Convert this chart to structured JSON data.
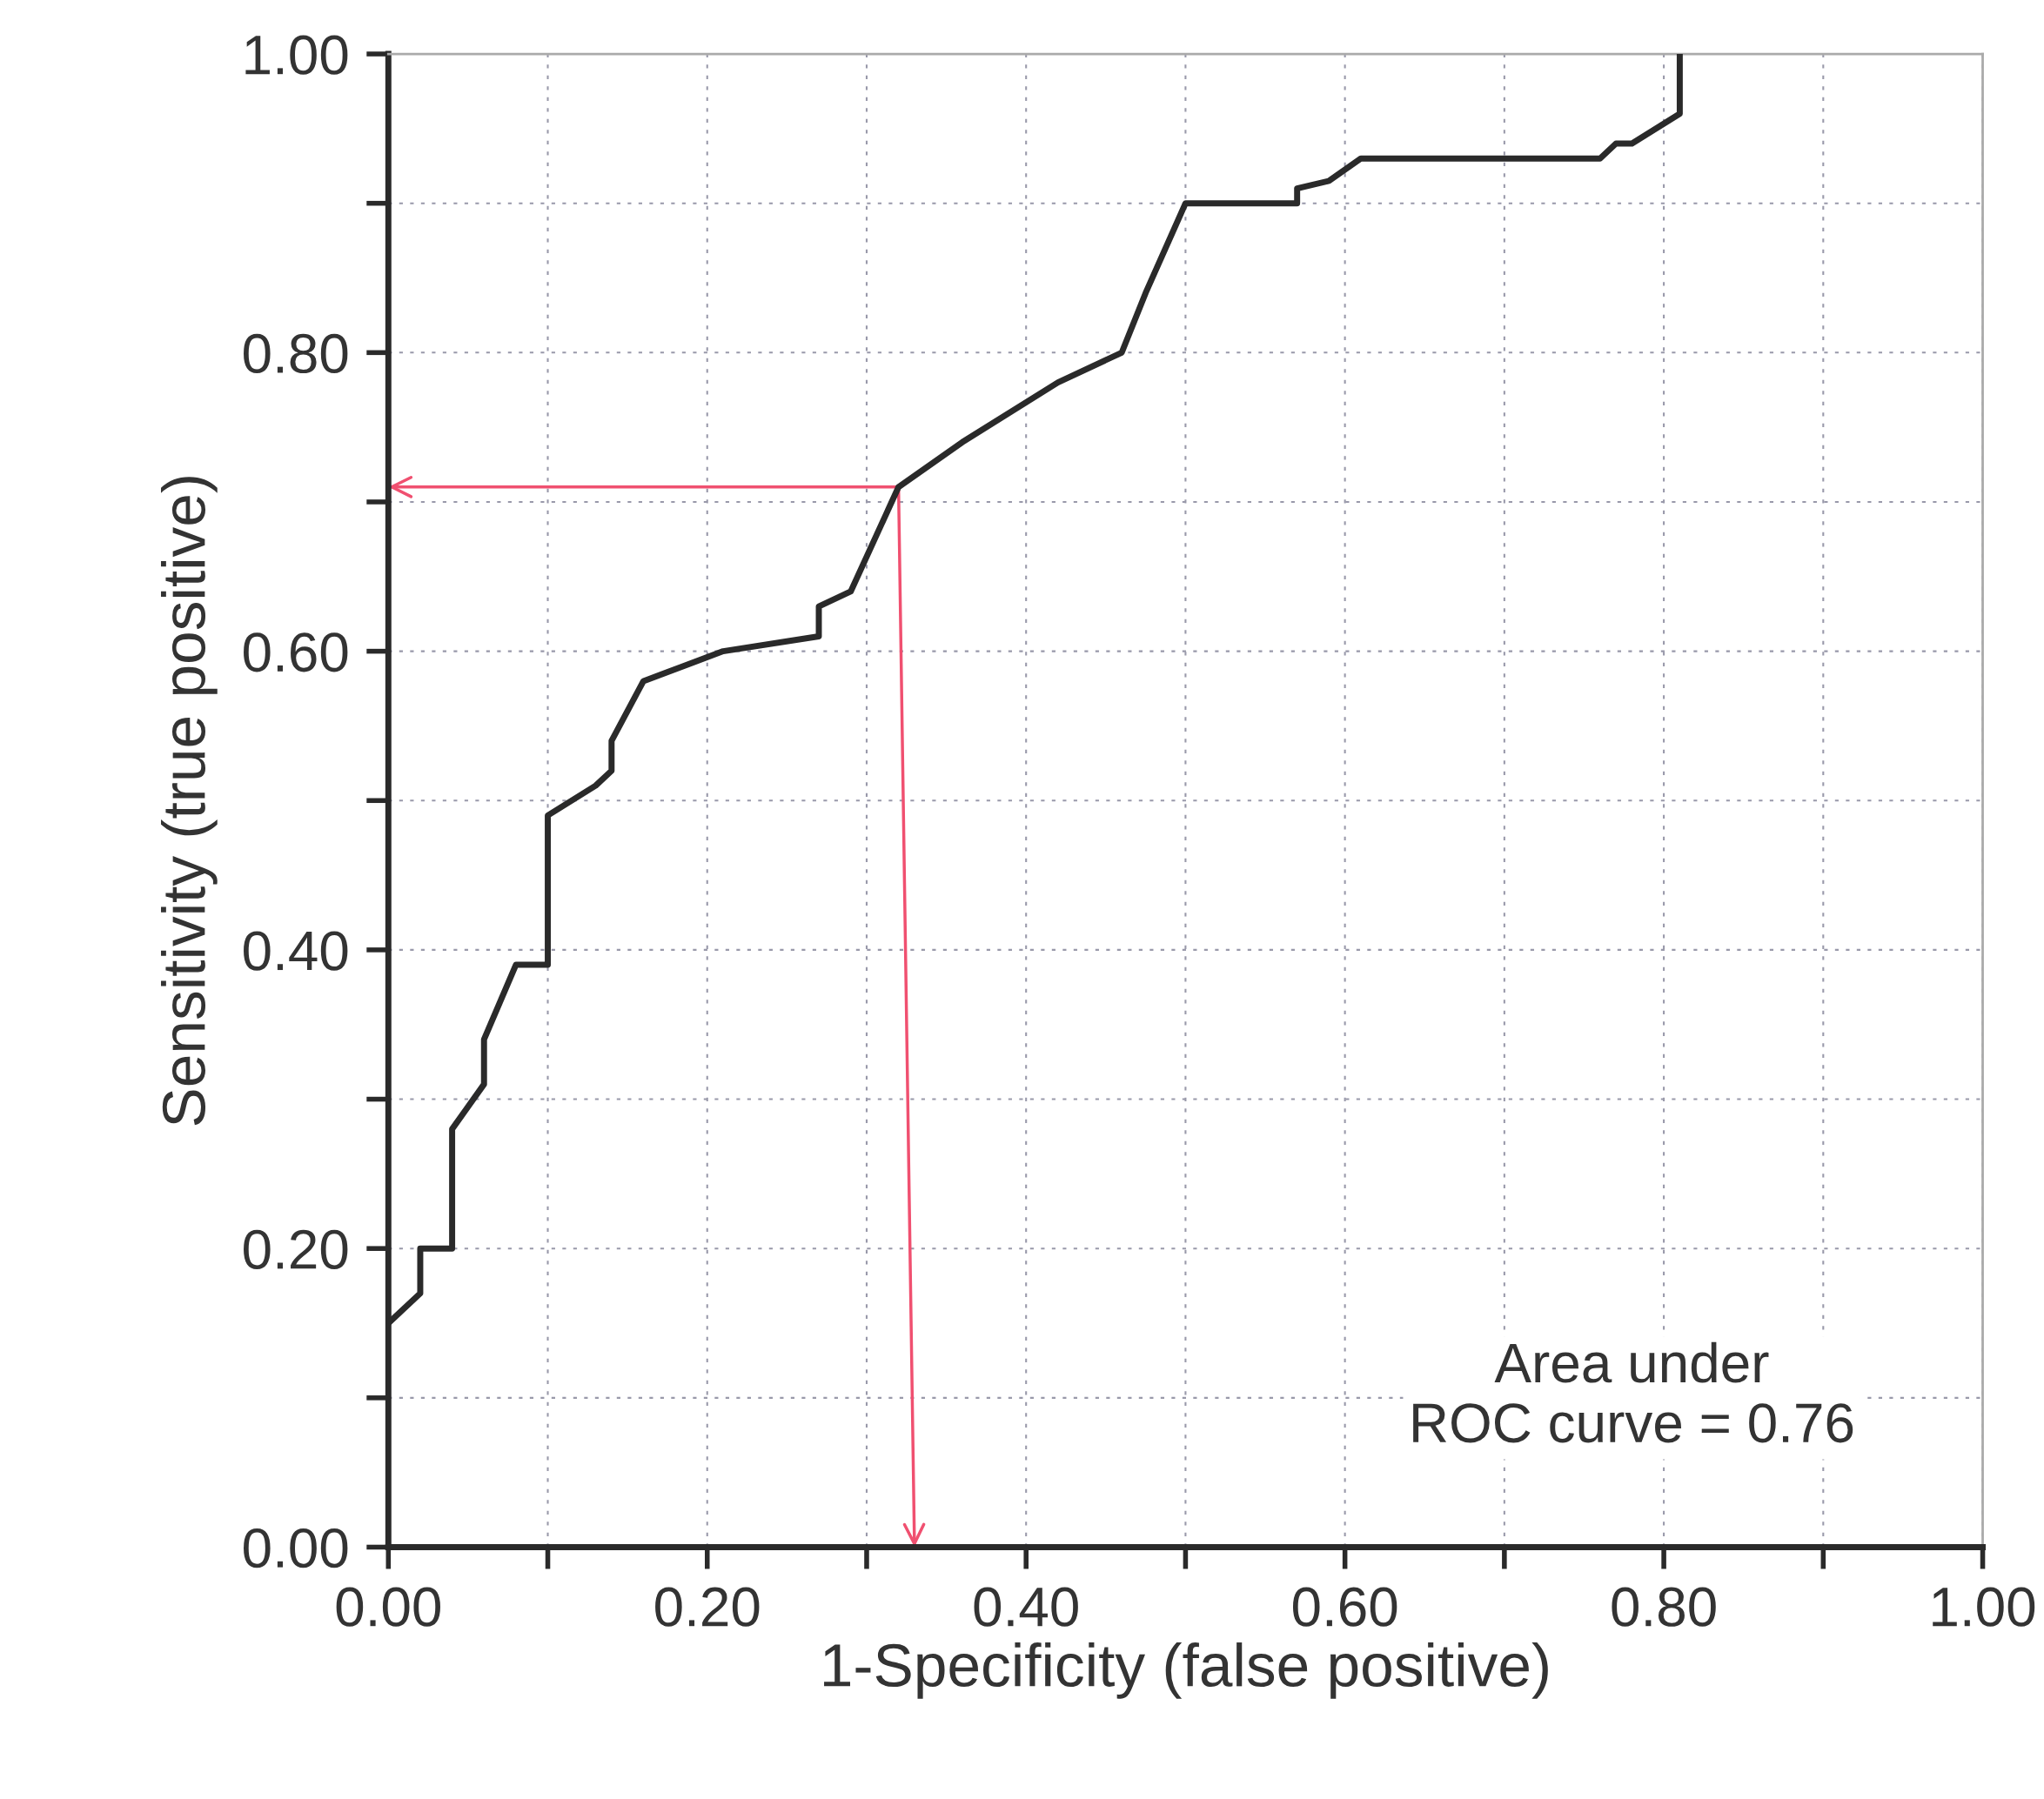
{
  "chart_data": {
    "type": "line",
    "xlabel": "1-Specificity (false positive)",
    "ylabel": "Sensitivity (true positive)",
    "xlim": [
      0,
      1
    ],
    "ylim": [
      0,
      1
    ],
    "xticks": [
      {
        "value": 0,
        "label": "0.00"
      },
      {
        "value": 0.1,
        "label": null
      },
      {
        "value": 0.2,
        "label": "0.20"
      },
      {
        "value": 0.3,
        "label": null
      },
      {
        "value": 0.4,
        "label": "0.40"
      },
      {
        "value": 0.5,
        "label": null
      },
      {
        "value": 0.6,
        "label": "0.60"
      },
      {
        "value": 0.7,
        "label": null
      },
      {
        "value": 0.8,
        "label": "0.80"
      },
      {
        "value": 0.9,
        "label": null
      },
      {
        "value": 1,
        "label": "1.00"
      }
    ],
    "yticks": [
      {
        "value": 0,
        "label": "0.00"
      },
      {
        "value": 0.1,
        "label": null
      },
      {
        "value": 0.2,
        "label": "0.20"
      },
      {
        "value": 0.3,
        "label": null
      },
      {
        "value": 0.4,
        "label": "0.40"
      },
      {
        "value": 0.5,
        "label": null
      },
      {
        "value": 0.6,
        "label": "0.60"
      },
      {
        "value": 0.7,
        "label": null
      },
      {
        "value": 0.8,
        "label": "0.80"
      },
      {
        "value": 0.9,
        "label": null
      },
      {
        "value": 1,
        "label": "1.00"
      }
    ],
    "grid": true,
    "marker": "none",
    "line_style": "solid",
    "series": [
      {
        "color": "#2a2a2a",
        "x": [
          0,
          0.02,
          0.02,
          0.04,
          0.04,
          0.06,
          0.06,
          0.08,
          0.1,
          0.1,
          0.13,
          0.14,
          0.14,
          0.16,
          0.21,
          0.27,
          0.27,
          0.29,
          0.32,
          0.36,
          0.42,
          0.46,
          0.475,
          0.5,
          0.57,
          0.57,
          0.59,
          0.61,
          0.76,
          0.77,
          0.78,
          0.81,
          0.81
        ],
        "values": [
          0.15,
          0.17,
          0.2,
          0.2,
          0.28,
          0.31,
          0.34,
          0.39,
          0.39,
          0.49,
          0.51,
          0.52,
          0.54,
          0.58,
          0.6,
          0.61,
          0.63,
          0.64,
          0.71,
          0.74,
          0.78,
          0.8,
          0.84,
          0.9,
          0.9,
          0.91,
          0.915,
          0.93,
          0.93,
          0.94,
          0.94,
          0.96,
          1.0
        ]
      },
      {
        "type": "line",
        "color": "#f05070",
        "x": [
          0.32,
          0
        ],
        "values": [
          0.71,
          0.71
        ]
      },
      {
        "type": "line",
        "color": "#f05070",
        "x": [
          0.32,
          0.33
        ],
        "values": [
          0.71,
          0
        ]
      }
    ],
    "annotations": [
      "Area under\nROC curve = 0.76"
    ]
  }
}
